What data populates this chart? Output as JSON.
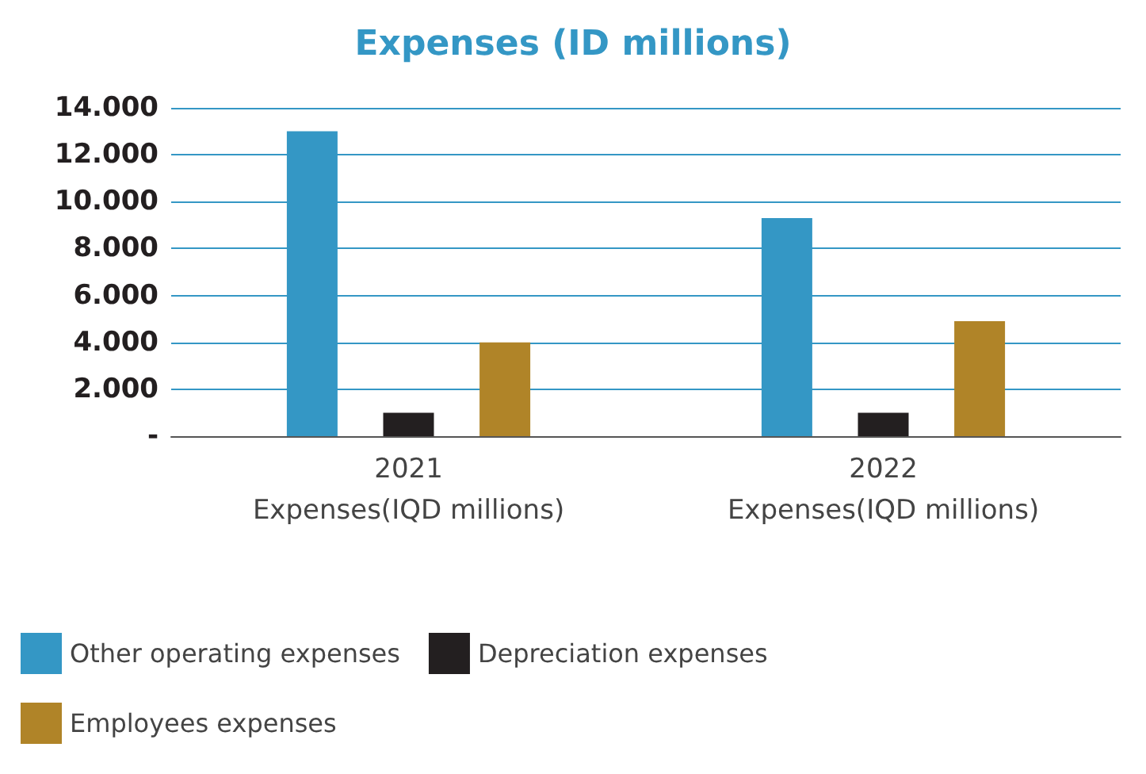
{
  "chart_data": {
    "type": "bar",
    "title": "Expenses (ID millions)",
    "categories": [
      "2021\nExpenses(IQD millions)",
      "2022\nExpenses(IQD millions)"
    ],
    "series": [
      {
        "name": "Other operating expenses",
        "color": "#3497c5",
        "values": [
          13000,
          9300
        ]
      },
      {
        "name": "Depreciation expenses",
        "color": "#231f20",
        "values": [
          1000,
          1000
        ]
      },
      {
        "name": "Employees expenses",
        "color": "#b08428",
        "values": [
          4000,
          4900
        ]
      }
    ],
    "ylim": [
      0,
      14000
    ],
    "yticks": [
      {
        "value": 0,
        "label": "-"
      },
      {
        "value": 2000,
        "label": "2.000"
      },
      {
        "value": 4000,
        "label": "4.000"
      },
      {
        "value": 6000,
        "label": "6.000"
      },
      {
        "value": 8000,
        "label": "8.000"
      },
      {
        "value": 10000,
        "label": "10.000"
      },
      {
        "value": 12000,
        "label": "12.000"
      },
      {
        "value": 14000,
        "label": "14.000"
      }
    ],
    "grid": "y",
    "legend": "bottom"
  }
}
